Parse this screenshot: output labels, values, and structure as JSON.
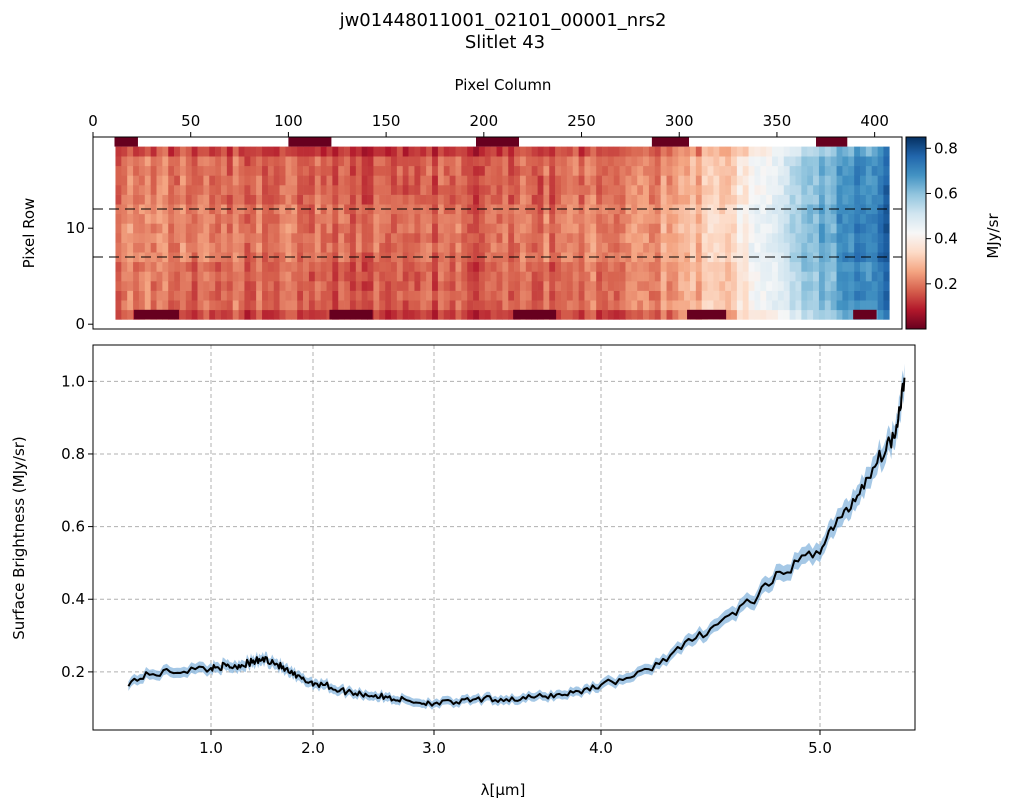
{
  "figure": {
    "title_line1": "jw01448011001_02101_00001_nrs2",
    "title_line2": "Slitlet 43"
  },
  "colors": {
    "spectrum_line": "#000000",
    "uncertainty_band": "#7fb0dc",
    "grid": "#b0b0b0",
    "colormap": [
      "#67001f",
      "#b2182b",
      "#d6604d",
      "#f4a582",
      "#fddbc7",
      "#f7f7f7",
      "#d1e5f0",
      "#92c5de",
      "#4393c3",
      "#2166ac",
      "#053061"
    ]
  },
  "chart_data": [
    {
      "type": "heatmap",
      "xlabel": "Pixel Column",
      "ylabel": "Pixel Row",
      "xlim": [
        0,
        414
      ],
      "ylim": [
        -0.5,
        19.5
      ],
      "x_ticks": [
        0,
        50,
        100,
        150,
        200,
        250,
        300,
        350,
        400
      ],
      "y_ticks": [
        0,
        10
      ],
      "colorbar": {
        "label": "MJy/sr",
        "range": [
          0.0,
          0.85
        ],
        "ticks": [
          0.2,
          0.4,
          0.6,
          0.8
        ],
        "colormap": "RdBu"
      },
      "extraction_rows": [
        7,
        12
      ],
      "data_columns": [
        12,
        408
      ],
      "data_rows": [
        1,
        18
      ],
      "profile": {
        "columns": [
          12,
          100,
          200,
          280,
          310,
          330,
          350,
          370,
          390,
          408
        ],
        "values": [
          0.2,
          0.18,
          0.16,
          0.2,
          0.28,
          0.36,
          0.5,
          0.6,
          0.68,
          0.74
        ]
      },
      "saturated_blocks": [
        {
          "row_side": "top",
          "columns": [
            [
              11,
              23
            ],
            [
              100,
              122
            ],
            [
              196,
              218
            ],
            [
              286,
              305
            ],
            [
              370,
              386
            ]
          ]
        },
        {
          "row_side": "bottom",
          "columns": [
            [
              21,
              44
            ],
            [
              121,
              143
            ],
            [
              215,
              237
            ],
            [
              304,
              324
            ],
            [
              389,
              401
            ]
          ]
        }
      ]
    },
    {
      "type": "line",
      "xlabel": "λ[μm]",
      "ylabel": "Surface Brightness (MJy/sr)",
      "xlim": [
        0.6,
        5.36
      ],
      "ylim": [
        0.04,
        1.1
      ],
      "x_ticks": [
        1.0,
        2.0,
        3.0,
        4.0,
        5.0
      ],
      "x_tick_labels": [
        "1.0",
        "2.0",
        "3.0",
        "4.0",
        "5.0"
      ],
      "y_ticks": [
        0.2,
        0.4,
        0.6,
        0.8,
        1.0
      ],
      "y_tick_labels": [
        "0.2",
        "0.4",
        "0.6",
        "0.8",
        "1.0"
      ],
      "grid": true,
      "x": [
        0.72,
        0.78,
        0.85,
        0.92,
        1.0,
        1.08,
        1.15,
        1.22,
        1.3,
        1.38,
        1.45,
        1.52,
        1.6,
        1.68,
        1.76,
        1.85,
        1.93,
        2.0,
        2.1,
        2.2,
        2.3,
        2.4,
        2.5,
        2.6,
        2.7,
        2.8,
        2.9,
        3.0,
        3.1,
        3.2,
        3.3,
        3.4,
        3.5,
        3.6,
        3.7,
        3.8,
        3.9,
        4.0,
        4.1,
        4.2,
        4.3,
        4.4,
        4.5,
        4.6,
        4.7,
        4.8,
        4.9,
        5.0,
        5.05,
        5.1,
        5.15,
        5.2,
        5.25,
        5.28,
        5.3,
        5.32
      ],
      "y": [
        0.17,
        0.19,
        0.2,
        0.205,
        0.21,
        0.215,
        0.215,
        0.215,
        0.22,
        0.225,
        0.23,
        0.235,
        0.23,
        0.215,
        0.2,
        0.185,
        0.175,
        0.17,
        0.165,
        0.15,
        0.145,
        0.14,
        0.135,
        0.13,
        0.125,
        0.12,
        0.115,
        0.115,
        0.115,
        0.12,
        0.125,
        0.125,
        0.125,
        0.13,
        0.135,
        0.14,
        0.15,
        0.165,
        0.18,
        0.2,
        0.24,
        0.28,
        0.32,
        0.36,
        0.4,
        0.46,
        0.5,
        0.54,
        0.6,
        0.64,
        0.7,
        0.76,
        0.82,
        0.85,
        0.92,
        1.01
      ]
    }
  ]
}
